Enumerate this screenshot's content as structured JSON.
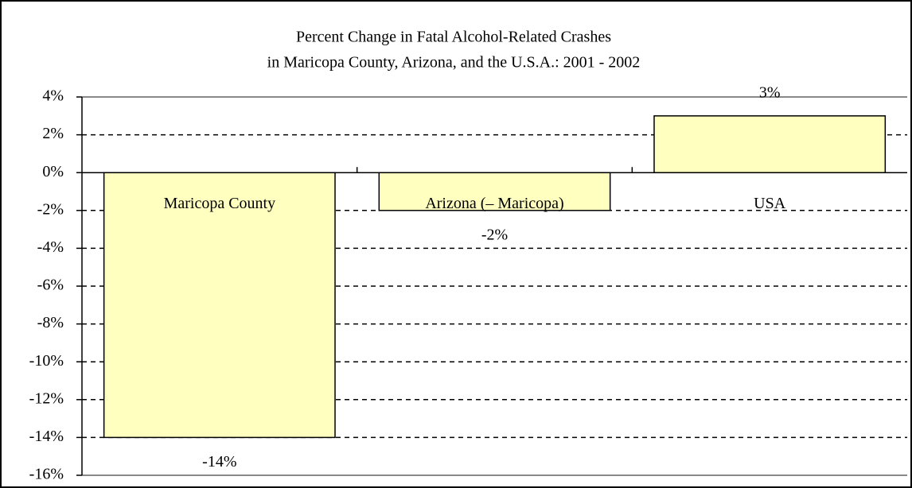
{
  "chart_data": {
    "type": "bar",
    "title": [
      "Percent Change in Fatal Alcohol-Related Crashes",
      "in Maricopa County, Arizona, and the U.S.A.: 2001 - 2002"
    ],
    "categories": [
      "Maricopa County",
      "Arizona (– Maricopa)",
      "USA"
    ],
    "values": [
      -14,
      -2,
      3
    ],
    "value_labels": [
      "-14%",
      "-2%",
      "3%"
    ],
    "color": "#ffffc0",
    "ylim": [
      -16,
      4
    ],
    "yticks": [
      {
        "value": -16,
        "label": "-16%"
      },
      {
        "value": -14,
        "label": "-14%"
      },
      {
        "value": -12,
        "label": "-12%"
      },
      {
        "value": -10,
        "label": "-10%"
      },
      {
        "value": -8,
        "label": "-8%"
      },
      {
        "value": -6,
        "label": "-6%"
      },
      {
        "value": -4,
        "label": "-4%"
      },
      {
        "value": -2,
        "label": "-2%"
      },
      {
        "value": 0,
        "label": "0%"
      },
      {
        "value": 2,
        "label": "2%"
      },
      {
        "value": 4,
        "label": "4%"
      }
    ],
    "grid": true
  }
}
